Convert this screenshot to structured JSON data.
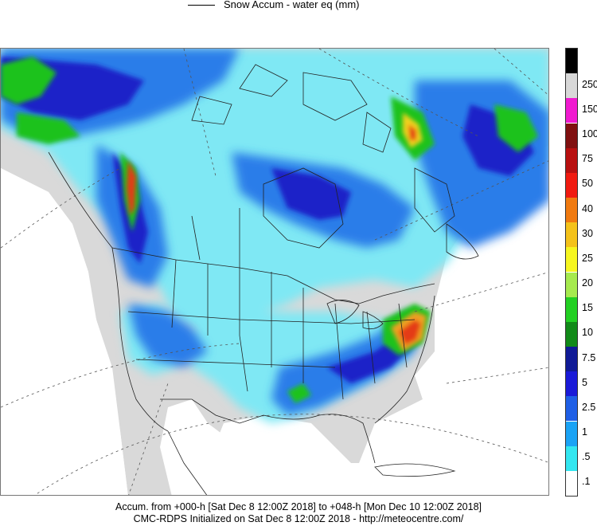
{
  "legend": {
    "line_label": "Snow Accum - water eq (mm)"
  },
  "colorbar": {
    "levels": [
      {
        "label": ".1",
        "color": "#ffffff"
      },
      {
        "label": ".5",
        "color": "#33e6f0"
      },
      {
        "label": "1",
        "color": "#1aa3f5"
      },
      {
        "label": "2.5",
        "color": "#1f5fe6"
      },
      {
        "label": "5",
        "color": "#1a1ad8"
      },
      {
        "label": "7.5",
        "color": "#101a96"
      },
      {
        "label": "10",
        "color": "#118a18"
      },
      {
        "label": "15",
        "color": "#22d022"
      },
      {
        "label": "20",
        "color": "#a6ea4e"
      },
      {
        "label": "25",
        "color": "#f6f620"
      },
      {
        "label": "30",
        "color": "#f4c21a"
      },
      {
        "label": "40",
        "color": "#f07a10"
      },
      {
        "label": "50",
        "color": "#f01a10"
      },
      {
        "label": "75",
        "color": "#b81010"
      },
      {
        "label": "100",
        "color": "#801010"
      },
      {
        "label": "150",
        "color": "#f01ad0"
      },
      {
        "label": "250",
        "color": "#d8d8d8"
      }
    ],
    "top_color": "#000000"
  },
  "footer": {
    "line1": "Accum. from +000-h [Sat Dec 8 12:00Z 2018] to +048-h [Mon Dec 10 12:00Z 2018]",
    "line2": "CMC-RDPS Initialized on Sat Dec 8 12:00Z 2018 - http://meteocentre.com/"
  }
}
